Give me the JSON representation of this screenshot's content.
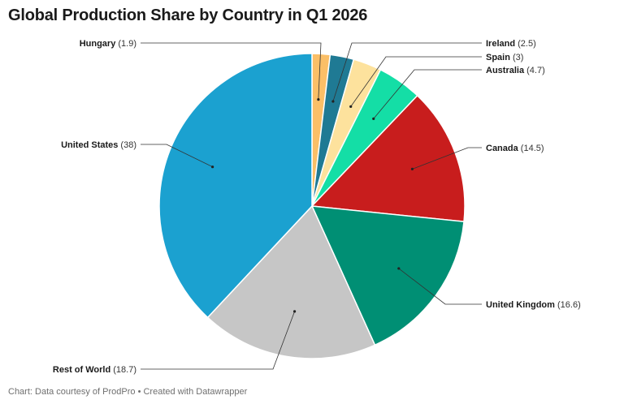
{
  "title": "Global Production Share by Country in Q1 2026",
  "footer": "Chart: Data courtesy of ProdPro • Created with Datawrapper",
  "chart_data": {
    "type": "pie",
    "title": "Global Production Share by Country in Q1 2026",
    "slices": [
      {
        "label": "Hungary",
        "value": 1.9,
        "value_text": "(1.9)",
        "color": "#fbbf67"
      },
      {
        "label": "Ireland",
        "value": 2.5,
        "value_text": "(2.5)",
        "color": "#1f7a94"
      },
      {
        "label": "Spain",
        "value": 3,
        "value_text": "(3)",
        "color": "#fde29d"
      },
      {
        "label": "Australia",
        "value": 4.7,
        "value_text": "(4.7)",
        "color": "#14dea6"
      },
      {
        "label": "Canada",
        "value": 14.5,
        "value_text": "(14.5)",
        "color": "#c81d1d"
      },
      {
        "label": "United Kingdom",
        "value": 16.6,
        "value_text": "(16.6)",
        "color": "#008f74"
      },
      {
        "label": "Rest of World",
        "value": 18.7,
        "value_text": "(18.7)",
        "color": "#c6c6c6"
      },
      {
        "label": "United States",
        "value": 38,
        "value_text": "(38)",
        "color": "#1ba1d0"
      }
    ]
  }
}
